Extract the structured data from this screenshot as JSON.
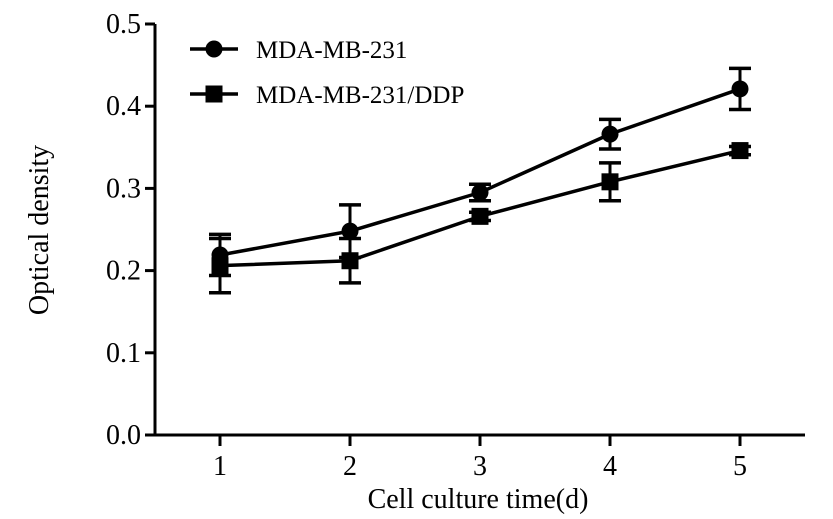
{
  "chart_data": {
    "type": "line",
    "title": "",
    "xlabel": "Cell culture time(d)",
    "ylabel": "Optical density",
    "x": [
      1,
      2,
      3,
      4,
      5
    ],
    "xticks": [
      "1",
      "2",
      "3",
      "4",
      "5"
    ],
    "xlim": [
      0.5,
      5.5
    ],
    "ylim": [
      0,
      0.5
    ],
    "yticks": [
      "0.0",
      "0.1",
      "0.2",
      "0.3",
      "0.4",
      "0.5"
    ],
    "ytick_values": [
      0,
      0.1,
      0.2,
      0.3,
      0.4,
      0.5
    ],
    "legend_position": "top-left",
    "series": [
      {
        "name": "MDA-MB-231",
        "marker": "circle",
        "values": [
          0.219,
          0.248,
          0.295,
          0.366,
          0.421
        ],
        "errors": [
          0.025,
          0.032,
          0.01,
          0.018,
          0.025
        ]
      },
      {
        "name": "MDA-MB-231/DDP",
        "marker": "square",
        "values": [
          0.206,
          0.212,
          0.266,
          0.308,
          0.346
        ],
        "errors": [
          0.033,
          0.027,
          0.005,
          0.023,
          0.005
        ]
      }
    ],
    "colors": {
      "line": "#000000",
      "background": "#ffffff"
    }
  }
}
